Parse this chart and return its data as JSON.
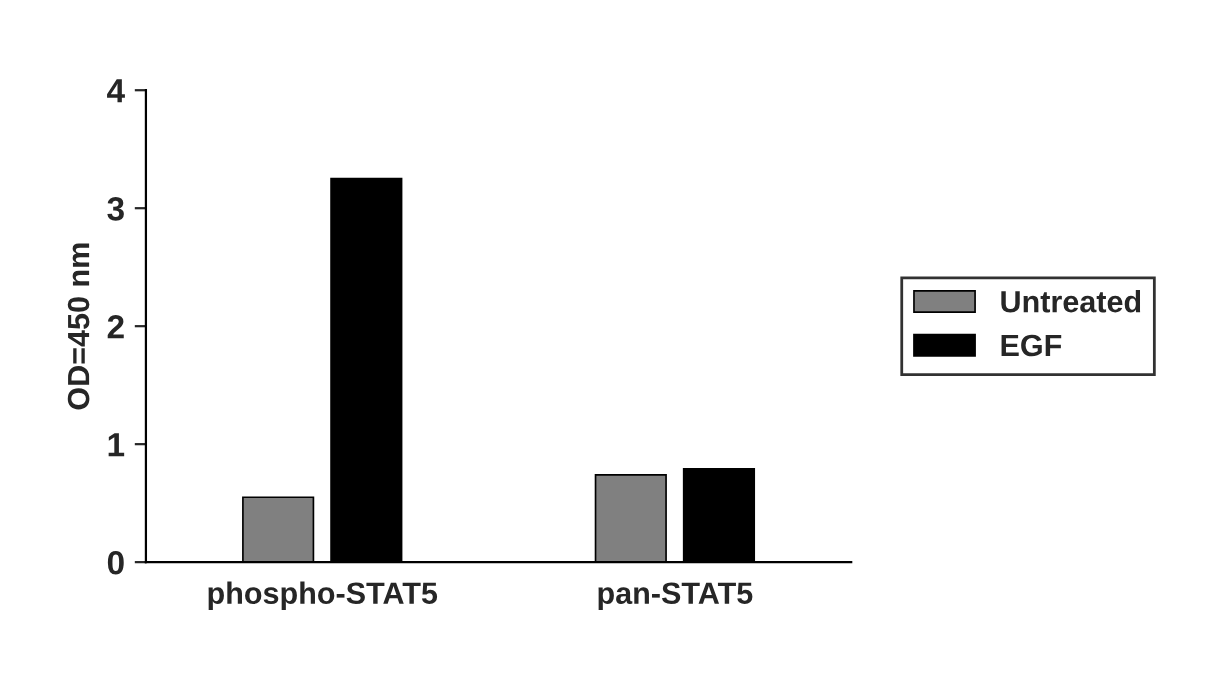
{
  "chart_data": {
    "type": "bar",
    "ylabel": "OD=450 nm",
    "categories": [
      "phospho-STAT5",
      "pan-STAT5"
    ],
    "series": [
      {
        "name": "Untreated",
        "color": "#808080",
        "values": [
          0.55,
          0.74
        ]
      },
      {
        "name": "EGF",
        "color": "#000000",
        "values": [
          3.25,
          0.79
        ]
      }
    ],
    "ylim": [
      0,
      4
    ],
    "yticks": [
      0,
      1,
      2,
      3,
      4
    ],
    "grid": false,
    "legend": "right"
  }
}
